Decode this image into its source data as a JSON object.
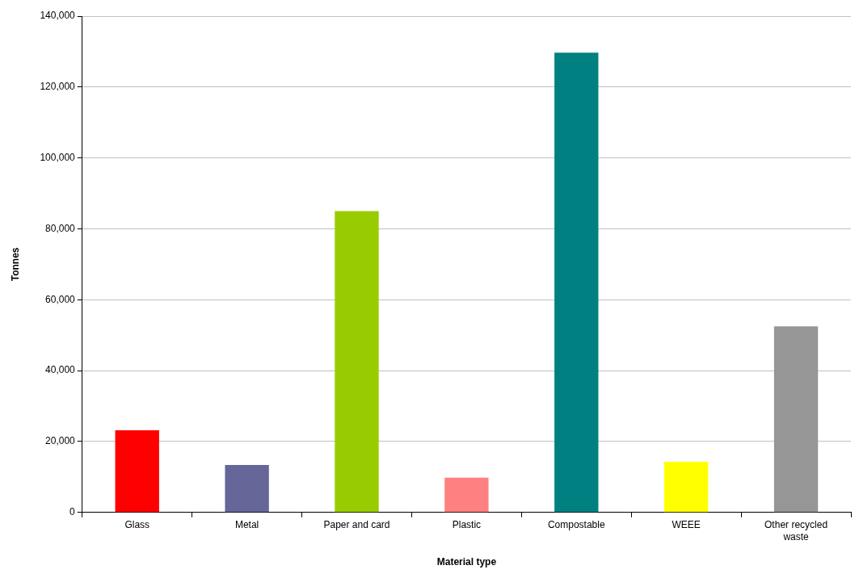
{
  "chart_data": {
    "type": "bar",
    "xlabel": "Material type",
    "ylabel": "Tonnes",
    "categories": [
      "Glass",
      "Metal",
      "Paper and card",
      "Plastic",
      "Compostable",
      "WEEE",
      "Other recycled waste"
    ],
    "values": [
      23200,
      13400,
      85000,
      9800,
      129700,
      14300,
      52500
    ],
    "colors": [
      "#ff0000",
      "#666699",
      "#99cc00",
      "#ff8080",
      "#008080",
      "#ffff00",
      "#969696"
    ],
    "ylim": [
      0,
      140000
    ],
    "yticks": [
      {
        "value": 0,
        "label": "0"
      },
      {
        "value": 20000,
        "label": "20,000"
      },
      {
        "value": 40000,
        "label": "40,000"
      },
      {
        "value": 60000,
        "label": "60,000"
      },
      {
        "value": 80000,
        "label": "80,000"
      },
      {
        "value": 100000,
        "label": "100,000"
      },
      {
        "value": 120000,
        "label": "120,000"
      },
      {
        "value": 140000,
        "label": "140,000"
      }
    ],
    "grid": "y",
    "legend": false
  }
}
